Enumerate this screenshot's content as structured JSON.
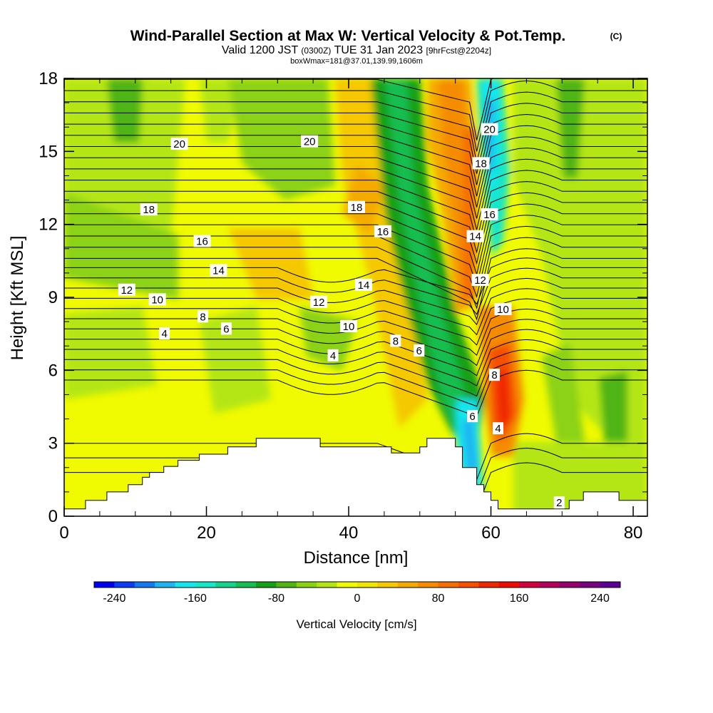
{
  "title": {
    "main": "Wind-Parallel Section at Max W: Vertical Velocity & Pot.Temp.",
    "main_mark": "(C)",
    "valid_prefix": "Valid 1200 JST",
    "valid_utc": "(0300Z)",
    "valid_date": "TUE 31 Jan 2023",
    "forecast": "[9hrFcst@2204z]",
    "box": "boxWmax=181@37.01,139.99,1606m"
  },
  "chart_data": {
    "type": "heatmap",
    "xlabel": "Distance [nm]",
    "ylabel": "Height [Kft MSL]",
    "xlim": [
      0,
      82
    ],
    "ylim": [
      0,
      18
    ],
    "x_ticks": [
      "0",
      "20",
      "40",
      "60",
      "80"
    ],
    "y_ticks": [
      "0",
      "3",
      "6",
      "9",
      "12",
      "15",
      "18"
    ],
    "colorbar": {
      "label": "Vertical Velocity [cm/s]",
      "range": [
        -260,
        260
      ],
      "ticks": [
        "-240",
        "-160",
        "-80",
        "0",
        "80",
        "160",
        "240"
      ],
      "colors": [
        "#0000f0",
        "#0a3cf5",
        "#1478f0",
        "#1eb4f0",
        "#14e6f0",
        "#14e6c8",
        "#14d28c",
        "#14be50",
        "#14a014",
        "#50b414",
        "#8cd214",
        "#b4e614",
        "#f0fa00",
        "#f0e600",
        "#f5c800",
        "#f5aa00",
        "#f58c00",
        "#f56e00",
        "#f55000",
        "#f02800",
        "#f00a00",
        "#d2003c",
        "#b4005a",
        "#96006e",
        "#780082",
        "#5a0096"
      ]
    },
    "terrain": [
      [
        0,
        0.3
      ],
      [
        3,
        0.3
      ],
      [
        3,
        0.65
      ],
      [
        6,
        0.65
      ],
      [
        6,
        1.0
      ],
      [
        9,
        1.0
      ],
      [
        9,
        1.3
      ],
      [
        11,
        1.3
      ],
      [
        11,
        1.6
      ],
      [
        12,
        1.6
      ],
      [
        12,
        1.8
      ],
      [
        14,
        1.8
      ],
      [
        14,
        2.05
      ],
      [
        16,
        2.05
      ],
      [
        16,
        2.3
      ],
      [
        19,
        2.3
      ],
      [
        19,
        2.55
      ],
      [
        23,
        2.55
      ],
      [
        23,
        2.85
      ],
      [
        27,
        2.85
      ],
      [
        27,
        3.2
      ],
      [
        36,
        3.2
      ],
      [
        36,
        2.85
      ],
      [
        46,
        2.85
      ],
      [
        46,
        2.6
      ],
      [
        50,
        2.6
      ],
      [
        50,
        2.85
      ],
      [
        51,
        2.85
      ],
      [
        51,
        3.2
      ],
      [
        55,
        3.2
      ],
      [
        55,
        2.85
      ],
      [
        56,
        2.85
      ],
      [
        56,
        2.0
      ],
      [
        58,
        2.0
      ],
      [
        58,
        1.3
      ],
      [
        59,
        1.3
      ],
      [
        59,
        1.0
      ],
      [
        60,
        1.0
      ],
      [
        60,
        0.65
      ],
      [
        61,
        0.65
      ],
      [
        61,
        0.3
      ],
      [
        71,
        0.3
      ],
      [
        71,
        0.65
      ],
      [
        73,
        0.65
      ],
      [
        73,
        1.0
      ],
      [
        78,
        1.0
      ],
      [
        78,
        0.65
      ],
      [
        82,
        0.65
      ]
    ],
    "isotherm_labels": [
      {
        "text": "2",
        "x": 69.6,
        "y": 0.55
      },
      {
        "text": "4",
        "x": 14.1,
        "y": 7.5
      },
      {
        "text": "4",
        "x": 37.8,
        "y": 6.6
      },
      {
        "text": "4",
        "x": 61.0,
        "y": 3.6
      },
      {
        "text": "6",
        "x": 22.8,
        "y": 7.7
      },
      {
        "text": "6",
        "x": 49.9,
        "y": 6.8
      },
      {
        "text": "6",
        "x": 57.4,
        "y": 4.1
      },
      {
        "text": "8",
        "x": 19.5,
        "y": 8.2
      },
      {
        "text": "8",
        "x": 46.6,
        "y": 7.2
      },
      {
        "text": "8",
        "x": 60.5,
        "y": 5.8
      },
      {
        "text": "10",
        "x": 13.1,
        "y": 8.9
      },
      {
        "text": "10",
        "x": 40.0,
        "y": 7.8
      },
      {
        "text": "10",
        "x": 61.7,
        "y": 8.5
      },
      {
        "text": "12",
        "x": 8.8,
        "y": 9.3
      },
      {
        "text": "12",
        "x": 35.8,
        "y": 8.8
      },
      {
        "text": "12",
        "x": 58.5,
        "y": 9.7
      },
      {
        "text": "14",
        "x": 21.7,
        "y": 10.1
      },
      {
        "text": "14",
        "x": 42.1,
        "y": 9.5
      },
      {
        "text": "14",
        "x": 57.8,
        "y": 11.5
      },
      {
        "text": "16",
        "x": 19.4,
        "y": 11.3
      },
      {
        "text": "16",
        "x": 44.8,
        "y": 11.7
      },
      {
        "text": "16",
        "x": 59.8,
        "y": 12.4
      },
      {
        "text": "18",
        "x": 11.9,
        "y": 12.6
      },
      {
        "text": "18",
        "x": 41.1,
        "y": 12.7
      },
      {
        "text": "18",
        "x": 58.6,
        "y": 14.5
      },
      {
        "text": "20",
        "x": 16.2,
        "y": 15.3
      },
      {
        "text": "20",
        "x": 34.5,
        "y": 15.4
      },
      {
        "text": "20",
        "x": 59.8,
        "y": 15.9
      }
    ]
  }
}
